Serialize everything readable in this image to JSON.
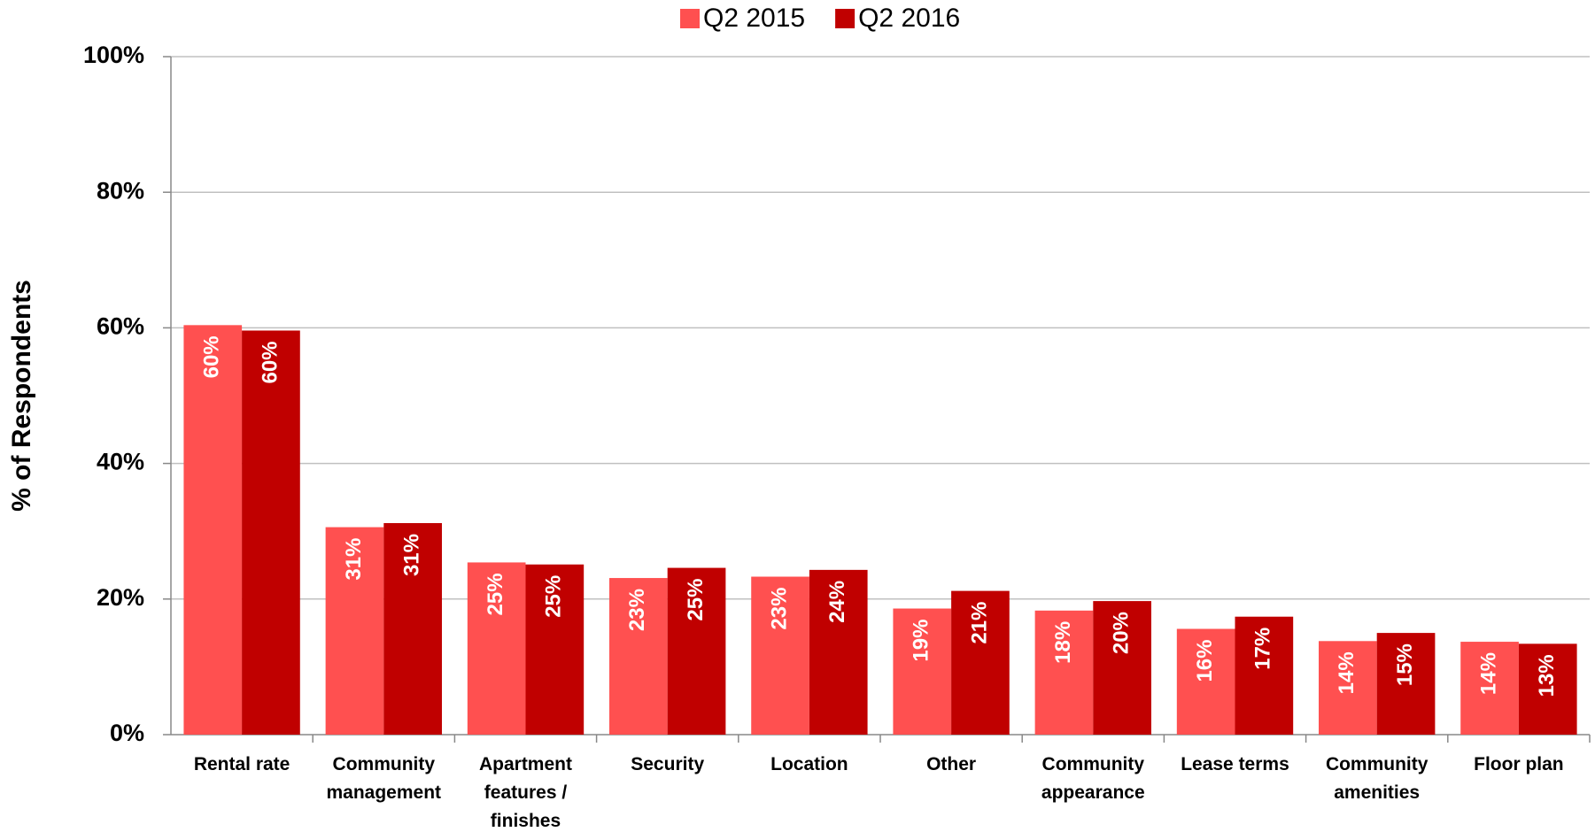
{
  "chart_data": {
    "type": "bar",
    "y_label": "% of Respondents",
    "categories": [
      "Rental rate",
      "Community management",
      "Apartment features / finishes",
      "Security",
      "Location",
      "Other",
      "Community appearance",
      "Lease terms",
      "Community amenities",
      "Floor plan"
    ],
    "series": [
      {
        "name": "Q2 2015",
        "color": "#ff5050",
        "values": [
          60.4,
          30.6,
          25.4,
          23.1,
          23.3,
          18.6,
          18.3,
          15.6,
          13.8,
          13.7
        ],
        "value_labels": [
          "60%",
          "31%",
          "25%",
          "23%",
          "23%",
          "19%",
          "18%",
          "16%",
          "14%",
          "14%"
        ]
      },
      {
        "name": "Q2 2016",
        "color": "#c00000",
        "values": [
          59.6,
          31.2,
          25.1,
          24.6,
          24.3,
          21.2,
          19.7,
          17.4,
          15.0,
          13.4
        ],
        "value_labels": [
          "60%",
          "31%",
          "25%",
          "25%",
          "24%",
          "21%",
          "20%",
          "17%",
          "15%",
          "13%"
        ]
      }
    ],
    "ylim": [
      0,
      100
    ],
    "yticks": [
      {
        "value": 0,
        "label": "0%"
      },
      {
        "value": 20,
        "label": "20%"
      },
      {
        "value": 40,
        "label": "40%"
      },
      {
        "value": 60,
        "label": "60%"
      },
      {
        "value": 80,
        "label": "80%"
      },
      {
        "value": 100,
        "label": "100%"
      }
    ],
    "grid": true,
    "legend": "top"
  }
}
